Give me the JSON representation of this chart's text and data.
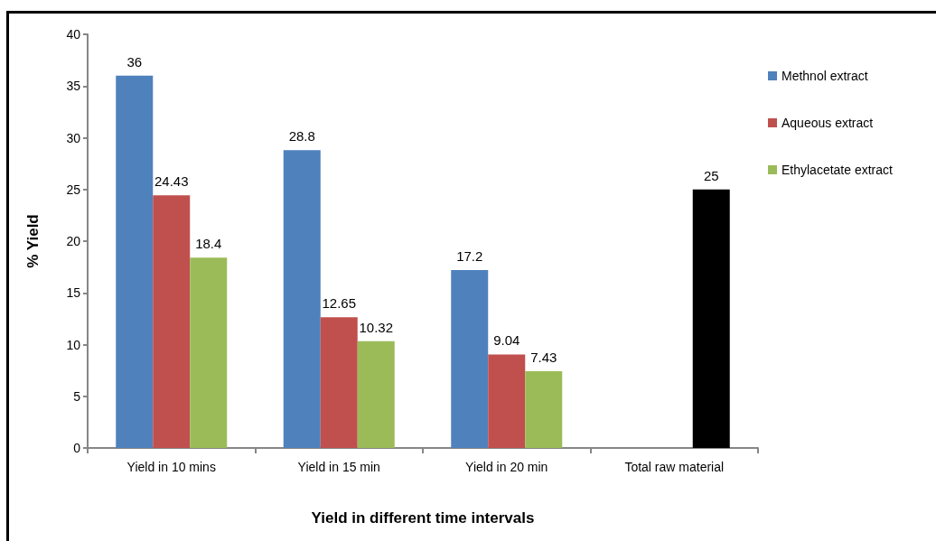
{
  "chart_data": {
    "type": "bar",
    "xlabel": "Yield in different time intervals",
    "ylabel": "% Yield",
    "categories": [
      "Yield in 10 mins",
      "Yield in 15 min",
      "Yield in 20 min",
      "Total raw material"
    ],
    "series": [
      {
        "name": "Methnol extract",
        "color": "#4f81bd",
        "values": [
          36,
          28.8,
          17.2,
          null
        ]
      },
      {
        "name": "Aqueous extract",
        "color": "#c0504d",
        "values": [
          24.43,
          12.65,
          9.04,
          null
        ]
      },
      {
        "name": "Ethylacetate extract",
        "color": "#9bbb59",
        "values": [
          18.4,
          10.32,
          7.43,
          25
        ],
        "colors": [
          "#9bbb59",
          "#9bbb59",
          "#9bbb59",
          "#000000"
        ]
      }
    ],
    "ylim": [
      0,
      40
    ],
    "yticks": [
      0,
      5,
      10,
      15,
      20,
      25,
      30,
      35,
      40
    ],
    "grid": false,
    "legend": "top right",
    "data_labels": true
  }
}
